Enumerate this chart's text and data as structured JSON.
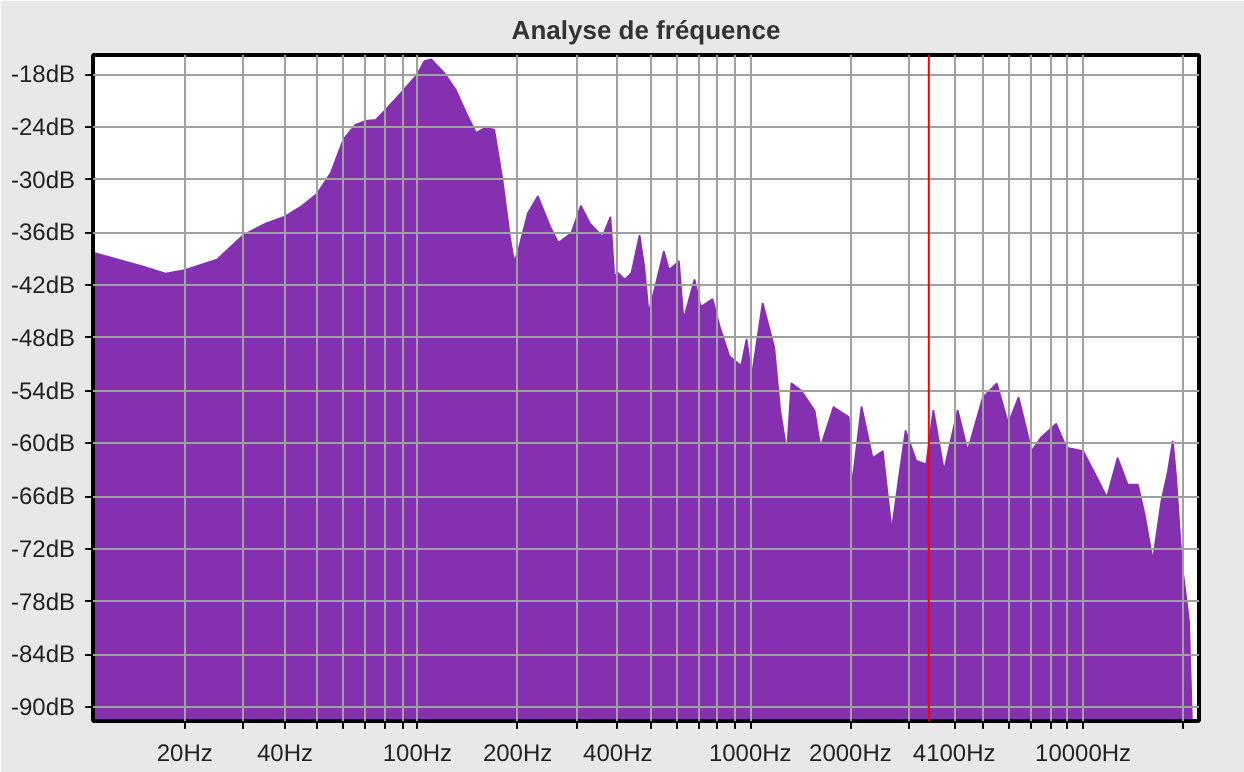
{
  "chart_data": {
    "type": "area",
    "title": "Analyse de fréquence",
    "log": "x",
    "grid": true,
    "xlim": [
      10.6,
      22300
    ],
    "ylim": [
      -91.6,
      -15.8
    ],
    "xticks": [
      {
        "value": 20,
        "label": "20Hz"
      },
      {
        "value": 30,
        "label": null
      },
      {
        "value": 40,
        "label": "40Hz"
      },
      {
        "value": 50,
        "label": null
      },
      {
        "value": 60,
        "label": null
      },
      {
        "value": 70,
        "label": null
      },
      {
        "value": 80,
        "label": null
      },
      {
        "value": 90,
        "label": null
      },
      {
        "value": 100,
        "label": "100Hz"
      },
      {
        "value": 200,
        "label": "200Hz"
      },
      {
        "value": 300,
        "label": null
      },
      {
        "value": 400,
        "label": "400Hz"
      },
      {
        "value": 500,
        "label": null
      },
      {
        "value": 600,
        "label": null
      },
      {
        "value": 700,
        "label": null
      },
      {
        "value": 800,
        "label": null
      },
      {
        "value": 900,
        "label": null
      },
      {
        "value": 1000,
        "label": "1000Hz"
      },
      {
        "value": 2000,
        "label": "2000Hz"
      },
      {
        "value": 3000,
        "label": null
      },
      {
        "value": 4100,
        "label": "4100Hz"
      },
      {
        "value": 5000,
        "label": null
      },
      {
        "value": 6000,
        "label": null
      },
      {
        "value": 7000,
        "label": null
      },
      {
        "value": 8000,
        "label": null
      },
      {
        "value": 9000,
        "label": null
      },
      {
        "value": 10000,
        "label": "10000Hz"
      },
      {
        "value": 20000,
        "label": null
      }
    ],
    "yticks": [
      {
        "value": -18,
        "label": "-18dB"
      },
      {
        "value": -24,
        "label": "-24dB"
      },
      {
        "value": -30,
        "label": "-30dB"
      },
      {
        "value": -36,
        "label": "-36dB"
      },
      {
        "value": -42,
        "label": "-42dB"
      },
      {
        "value": -48,
        "label": "-48dB"
      },
      {
        "value": -54,
        "label": "-54dB"
      },
      {
        "value": -60,
        "label": "-60dB"
      },
      {
        "value": -66,
        "label": "-66dB"
      },
      {
        "value": -72,
        "label": "-72dB"
      },
      {
        "value": -78,
        "label": "-78dB"
      },
      {
        "value": -84,
        "label": "-84dB"
      },
      {
        "value": -90,
        "label": "-90dB"
      }
    ],
    "ref_lines": [
      {
        "axis": "x",
        "value": 3440,
        "color": "#ff0000"
      }
    ],
    "series": [
      {
        "color": "#8530b1",
        "x": [
          10.6,
          15,
          17.5,
          20,
          25,
          30,
          35,
          40,
          45,
          50,
          55,
          60,
          65,
          70,
          75,
          80,
          90,
          100,
          105,
          110,
          120,
          130,
          140,
          150,
          160,
          170,
          180,
          190,
          195,
          200,
          215,
          230,
          250,
          265,
          290,
          310,
          330,
          360,
          380,
          390,
          400,
          420,
          440,
          465,
          480,
          495,
          520,
          550,
          570,
          610,
          630,
          655,
          680,
          710,
          770,
          810,
          865,
          940,
          975,
          1010,
          1090,
          1180,
          1230,
          1290,
          1330,
          1420,
          1560,
          1625,
          1780,
          1975,
          2020,
          2160,
          2330,
          2500,
          2660,
          2800,
          2930,
          3150,
          3380,
          3550,
          3820,
          4200,
          4500,
          5000,
          5500,
          5960,
          6400,
          7000,
          7500,
          8300,
          8900,
          10000,
          11000,
          11800,
          12700,
          13600,
          14600,
          15300,
          16200,
          17200,
          18000,
          18600,
          19000,
          19800,
          20400,
          20800,
          21200
        ],
        "values": [
          -38.3,
          -39.9,
          -40.7,
          -40.3,
          -39.1,
          -36.3,
          -35.0,
          -34.2,
          -33.0,
          -31.6,
          -29.2,
          -25.4,
          -23.8,
          -23.3,
          -23.2,
          -22.1,
          -20.0,
          -18.0,
          -16.5,
          -16.3,
          -17.8,
          -19.7,
          -22.4,
          -24.7,
          -24.1,
          -24.3,
          -30.0,
          -36.8,
          -39.3,
          -38.4,
          -33.8,
          -31.9,
          -35.3,
          -37.2,
          -36.1,
          -33.0,
          -35.0,
          -36.5,
          -34.3,
          -41.0,
          -40.6,
          -41.4,
          -40.6,
          -36.4,
          -39.9,
          -45.2,
          -42.0,
          -38.2,
          -40.3,
          -39.3,
          -46.0,
          -43.7,
          -41.4,
          -44.5,
          -43.6,
          -46.8,
          -50.1,
          -51.2,
          -48.2,
          -52.5,
          -44.1,
          -49.1,
          -56.3,
          -61.2,
          -53.2,
          -54.0,
          -56.3,
          -60.5,
          -55.9,
          -57.0,
          -65.0,
          -55.9,
          -61.7,
          -60.9,
          -70.0,
          -63.9,
          -58.6,
          -62.0,
          -62.4,
          -56.3,
          -63.2,
          -56.3,
          -60.9,
          -54.8,
          -53.2,
          -57.8,
          -54.8,
          -60.9,
          -59.3,
          -57.8,
          -60.5,
          -60.9,
          -63.9,
          -66.2,
          -61.7,
          -64.7,
          -64.7,
          -68.1,
          -73.4,
          -66.6,
          -63.2,
          -59.8,
          -63.6,
          -73.8,
          -77.6,
          -80.3,
          -91.0
        ]
      }
    ]
  }
}
